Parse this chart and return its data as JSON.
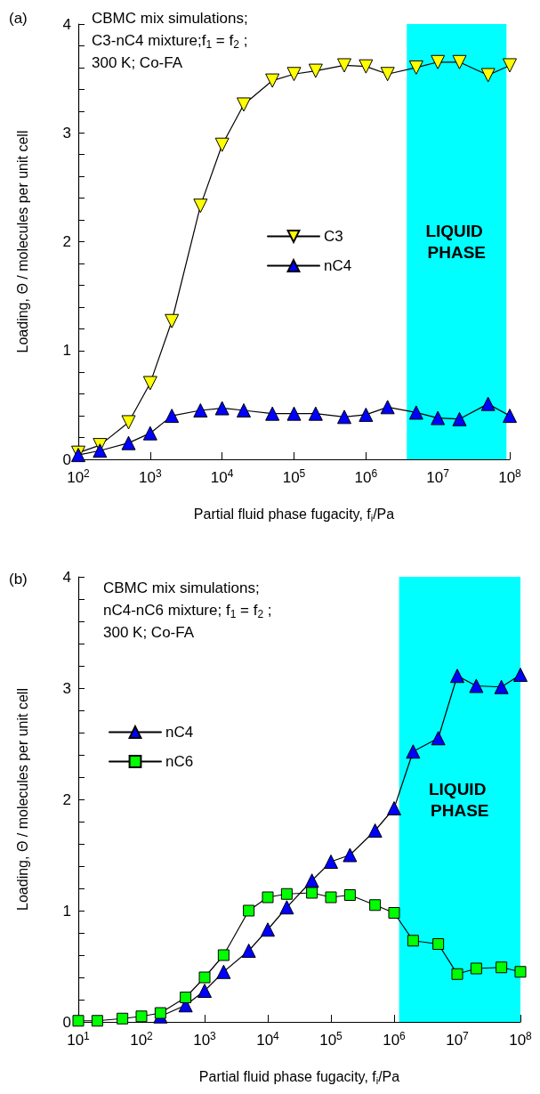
{
  "chart_data": [
    {
      "type": "line",
      "annotations": [
        "(a)",
        "CBMC mix simulations;",
        "C3-nC4 mixture;f$_{1}$ = f$_{2}$ ;",
        "300 K; Co-FA"
      ],
      "xlabel": "Partial fluid phase fugacity, f$_{i}$/Pa",
      "ylabel": "Loading, Θ / molecules per unit cell",
      "log": "x",
      "x": [
        100,
        200,
        500,
        1000,
        2000,
        5000,
        10000,
        20000,
        50000,
        100000,
        200000,
        500000,
        1000000,
        2000000,
        5000000,
        10000000,
        20000000,
        50000000,
        100000000
      ],
      "series": [
        {
          "name": "C3",
          "color": "#ffff00",
          "marker": "triangle-down",
          "values": [
            0.06,
            0.13,
            0.34,
            0.7,
            1.27,
            2.33,
            2.89,
            3.26,
            3.48,
            3.54,
            3.57,
            3.62,
            3.61,
            3.54,
            3.6,
            3.65,
            3.65,
            3.53,
            3.62
          ]
        },
        {
          "name": "nC4",
          "color": "#0000ff",
          "marker": "triangle",
          "values": [
            0.04,
            0.08,
            0.15,
            0.24,
            0.4,
            0.45,
            0.47,
            0.45,
            0.42,
            0.42,
            0.42,
            0.39,
            0.41,
            0.48,
            0.43,
            0.38,
            0.37,
            0.51,
            0.4
          ]
        }
      ],
      "xlim": [
        100,
        100000000
      ],
      "xticks": [
        {
          "value": 100,
          "label": "10$^{2}$"
        },
        {
          "value": 1000,
          "label": "10$^{3}$"
        },
        {
          "value": 10000,
          "label": "10$^{4}$"
        },
        {
          "value": 100000,
          "label": "10$^{5}$"
        },
        {
          "value": 1000000,
          "label": "10$^{6}$"
        },
        {
          "value": 10000000,
          "label": "10$^{7}$"
        },
        {
          "value": 100000000,
          "label": "10$^{8}$"
        }
      ],
      "ylim": [
        0,
        4
      ],
      "yticks": [
        0,
        {
          "value": 0.2,
          "label": null
        },
        {
          "value": 0.4,
          "label": null
        },
        {
          "value": 0.6,
          "label": null
        },
        {
          "value": 0.8,
          "label": null
        },
        1,
        {
          "value": 1.2,
          "label": null
        },
        {
          "value": 1.4,
          "label": null
        },
        {
          "value": 1.6,
          "label": null
        },
        {
          "value": 1.8,
          "label": null
        },
        2,
        {
          "value": 2.2,
          "label": null
        },
        {
          "value": 2.4,
          "label": null
        },
        {
          "value": 2.6,
          "label": null
        },
        {
          "value": 2.8,
          "label": null
        },
        3,
        {
          "value": 3.2,
          "label": null
        },
        {
          "value": 3.4,
          "label": null
        },
        {
          "value": 3.6,
          "label": null
        },
        {
          "value": 3.8,
          "label": null
        },
        4
      ],
      "bands": [
        {
          "axis": "x",
          "from": 3700000,
          "to": 90000000,
          "label": "LIQUID PHASE",
          "color": "#00ffff"
        }
      ],
      "legend": "center"
    },
    {
      "type": "line",
      "annotations": [
        "(b)",
        "CBMC mix simulations;",
        "nC4-nC6 mixture; f$_{1}$ = f$_{2}$ ;",
        "300 K; Co-FA"
      ],
      "xlabel": "Partial fluid phase fugacity, f$_{i}$/Pa",
      "ylabel": "Loading, Θ / molecules per unit cell",
      "log": "x",
      "x": [
        10,
        20,
        50,
        100,
        200,
        500,
        1000,
        2000,
        5000,
        10000,
        20000,
        50000,
        100000,
        200000,
        500000,
        1000000,
        2000000,
        5000000,
        10000000,
        20000000,
        50000000,
        100000000
      ],
      "series": [
        {
          "name": "nC4",
          "color": "#0000ff",
          "marker": "triangle",
          "values": [
            null,
            null,
            null,
            null,
            0.05,
            0.15,
            0.28,
            0.45,
            0.64,
            0.83,
            1.03,
            1.27,
            1.44,
            1.5,
            1.72,
            1.92,
            2.43,
            2.55,
            3.11,
            3.02,
            3.01,
            3.12
          ]
        },
        {
          "name": "nC6",
          "color": "#00ff00",
          "marker": "square",
          "values": [
            0.01,
            0.01,
            0.03,
            0.05,
            0.08,
            0.22,
            0.4,
            0.6,
            1.0,
            1.12,
            1.15,
            1.16,
            1.12,
            1.14,
            1.05,
            0.98,
            0.73,
            0.7,
            0.43,
            0.48,
            0.49,
            0.45
          ]
        }
      ],
      "xlim": [
        10,
        100000000
      ],
      "xticks": [
        {
          "value": 10,
          "label": "10$^{1}$"
        },
        {
          "value": 100,
          "label": "10$^{2}$"
        },
        {
          "value": 1000,
          "label": "10$^{3}$"
        },
        {
          "value": 10000,
          "label": "10$^{4}$"
        },
        {
          "value": 100000,
          "label": "10$^{5}$"
        },
        {
          "value": 1000000,
          "label": "10$^{6}$"
        },
        {
          "value": 10000000,
          "label": "10$^{7}$"
        },
        {
          "value": 100000000,
          "label": "10$^{8}$"
        }
      ],
      "ylim": [
        0,
        4
      ],
      "yticks": [
        0,
        {
          "value": 0.2,
          "label": null
        },
        {
          "value": 0.4,
          "label": null
        },
        {
          "value": 0.6,
          "label": null
        },
        {
          "value": 0.8,
          "label": null
        },
        1,
        {
          "value": 1.2,
          "label": null
        },
        {
          "value": 1.4,
          "label": null
        },
        {
          "value": 1.6,
          "label": null
        },
        {
          "value": 1.8,
          "label": null
        },
        2,
        {
          "value": 2.2,
          "label": null
        },
        {
          "value": 2.4,
          "label": null
        },
        {
          "value": 2.6,
          "label": null
        },
        {
          "value": 2.8,
          "label": null
        },
        3,
        {
          "value": 3.2,
          "label": null
        },
        {
          "value": 3.4,
          "label": null
        },
        {
          "value": 3.6,
          "label": null
        },
        {
          "value": 3.8,
          "label": null
        },
        4
      ],
      "bands": [
        {
          "axis": "x",
          "from": 1200000,
          "to": 100000000,
          "label": "LIQUID PHASE",
          "color": "#00ffff"
        }
      ],
      "legend": "left"
    }
  ]
}
